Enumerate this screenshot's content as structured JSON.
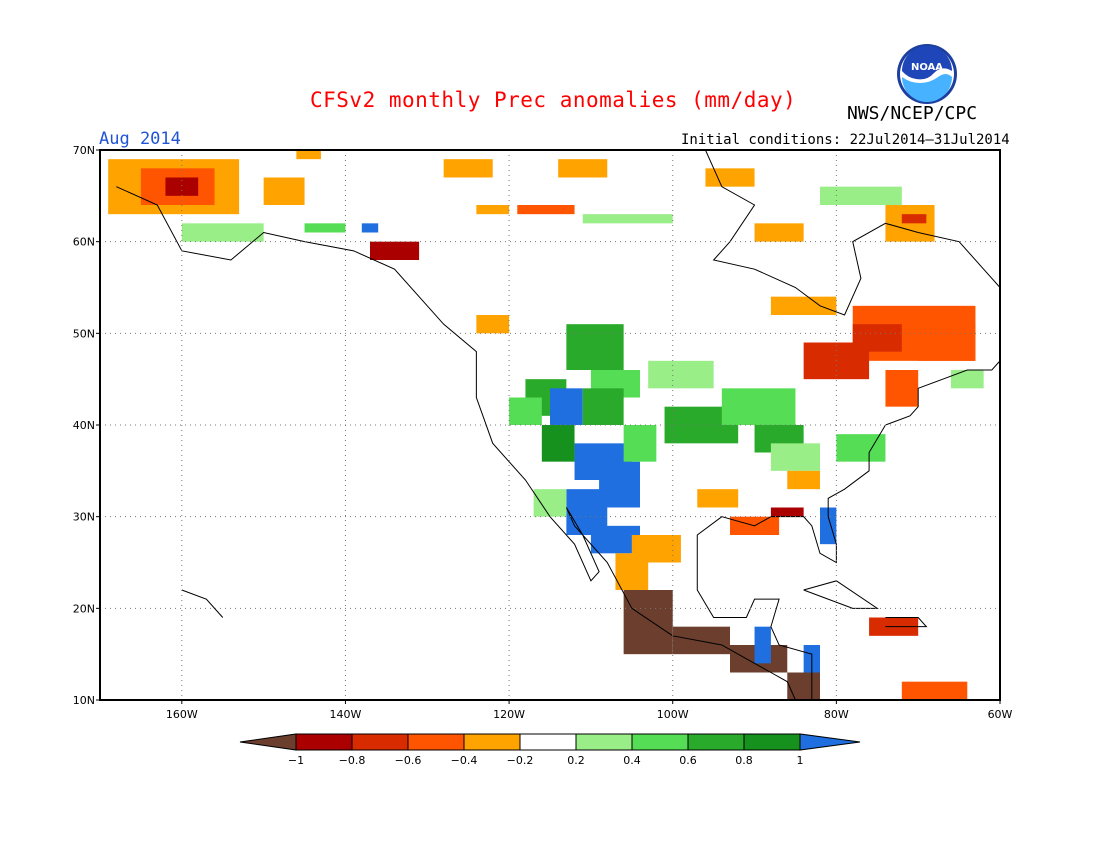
{
  "title": "CFSv2 monthly Prec anomalies (mm/day)",
  "agency": "NWS/NCEP/CPC",
  "period": "Aug 2014",
  "initial_conditions": "Initial conditions: 22Jul2014–31Jul2014",
  "logo_text": "NOAA",
  "map": {
    "lon_range": [
      -170,
      -60
    ],
    "lat_range": [
      10,
      70
    ],
    "lat_ticks": [
      "10N",
      "20N",
      "30N",
      "40N",
      "50N",
      "60N",
      "70N"
    ],
    "lon_ticks": [
      "160W",
      "140W",
      "120W",
      "100W",
      "80W",
      "60W"
    ],
    "grid": "dotted"
  },
  "colorbar": {
    "labels": [
      "−1",
      "−0.8",
      "−0.6",
      "−0.4",
      "−0.2",
      "0.2",
      "0.4",
      "0.6",
      "0.8",
      "1"
    ],
    "colors": {
      "below_-1": "#6b3e2e",
      "-1_-0.8": "#aa0000",
      "-0.8_-0.6": "#d92b00",
      "-0.6_-0.4": "#ff5500",
      "-0.4_-0.2": "#ffa300",
      "-0.2_0.2": "#ffffff",
      "0.2_0.4": "#99ee88",
      "0.4_0.6": "#55dd55",
      "0.6_0.8": "#2aaa2a",
      "0.8_1": "#16911d",
      "above_1": "#1f6fe0"
    }
  }
}
